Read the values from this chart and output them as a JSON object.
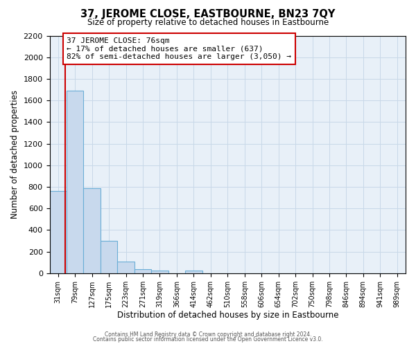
{
  "title": "37, JEROME CLOSE, EASTBOURNE, BN23 7QY",
  "subtitle": "Size of property relative to detached houses in Eastbourne",
  "xlabel": "Distribution of detached houses by size in Eastbourne",
  "ylabel": "Number of detached properties",
  "bar_labels": [
    "31sqm",
    "79sqm",
    "127sqm",
    "175sqm",
    "223sqm",
    "271sqm",
    "319sqm",
    "366sqm",
    "414sqm",
    "462sqm",
    "510sqm",
    "558sqm",
    "606sqm",
    "654sqm",
    "702sqm",
    "750sqm",
    "798sqm",
    "846sqm",
    "894sqm",
    "941sqm",
    "989sqm"
  ],
  "bar_values": [
    760,
    1690,
    790,
    300,
    110,
    40,
    25,
    0,
    25,
    0,
    0,
    0,
    0,
    0,
    0,
    0,
    0,
    0,
    0,
    0,
    0
  ],
  "bar_color": "#c8d9ed",
  "bar_edge_color": "#6aaed6",
  "property_line_color": "#cc0000",
  "annotation_text_line1": "37 JEROME CLOSE: 76sqm",
  "annotation_text_line2": "← 17% of detached houses are smaller (637)",
  "annotation_text_line3": "82% of semi-detached houses are larger (3,050) →",
  "annotation_box_color": "white",
  "annotation_box_edge_color": "#cc0000",
  "ylim": [
    0,
    2200
  ],
  "yticks": [
    0,
    200,
    400,
    600,
    800,
    1000,
    1200,
    1400,
    1600,
    1800,
    2000,
    2200
  ],
  "grid_color": "#c8d8e8",
  "background_color": "#e8f0f8",
  "footer_line1": "Contains HM Land Registry data © Crown copyright and database right 2024.",
  "footer_line2": "Contains public sector information licensed under the Open Government Licence v3.0."
}
